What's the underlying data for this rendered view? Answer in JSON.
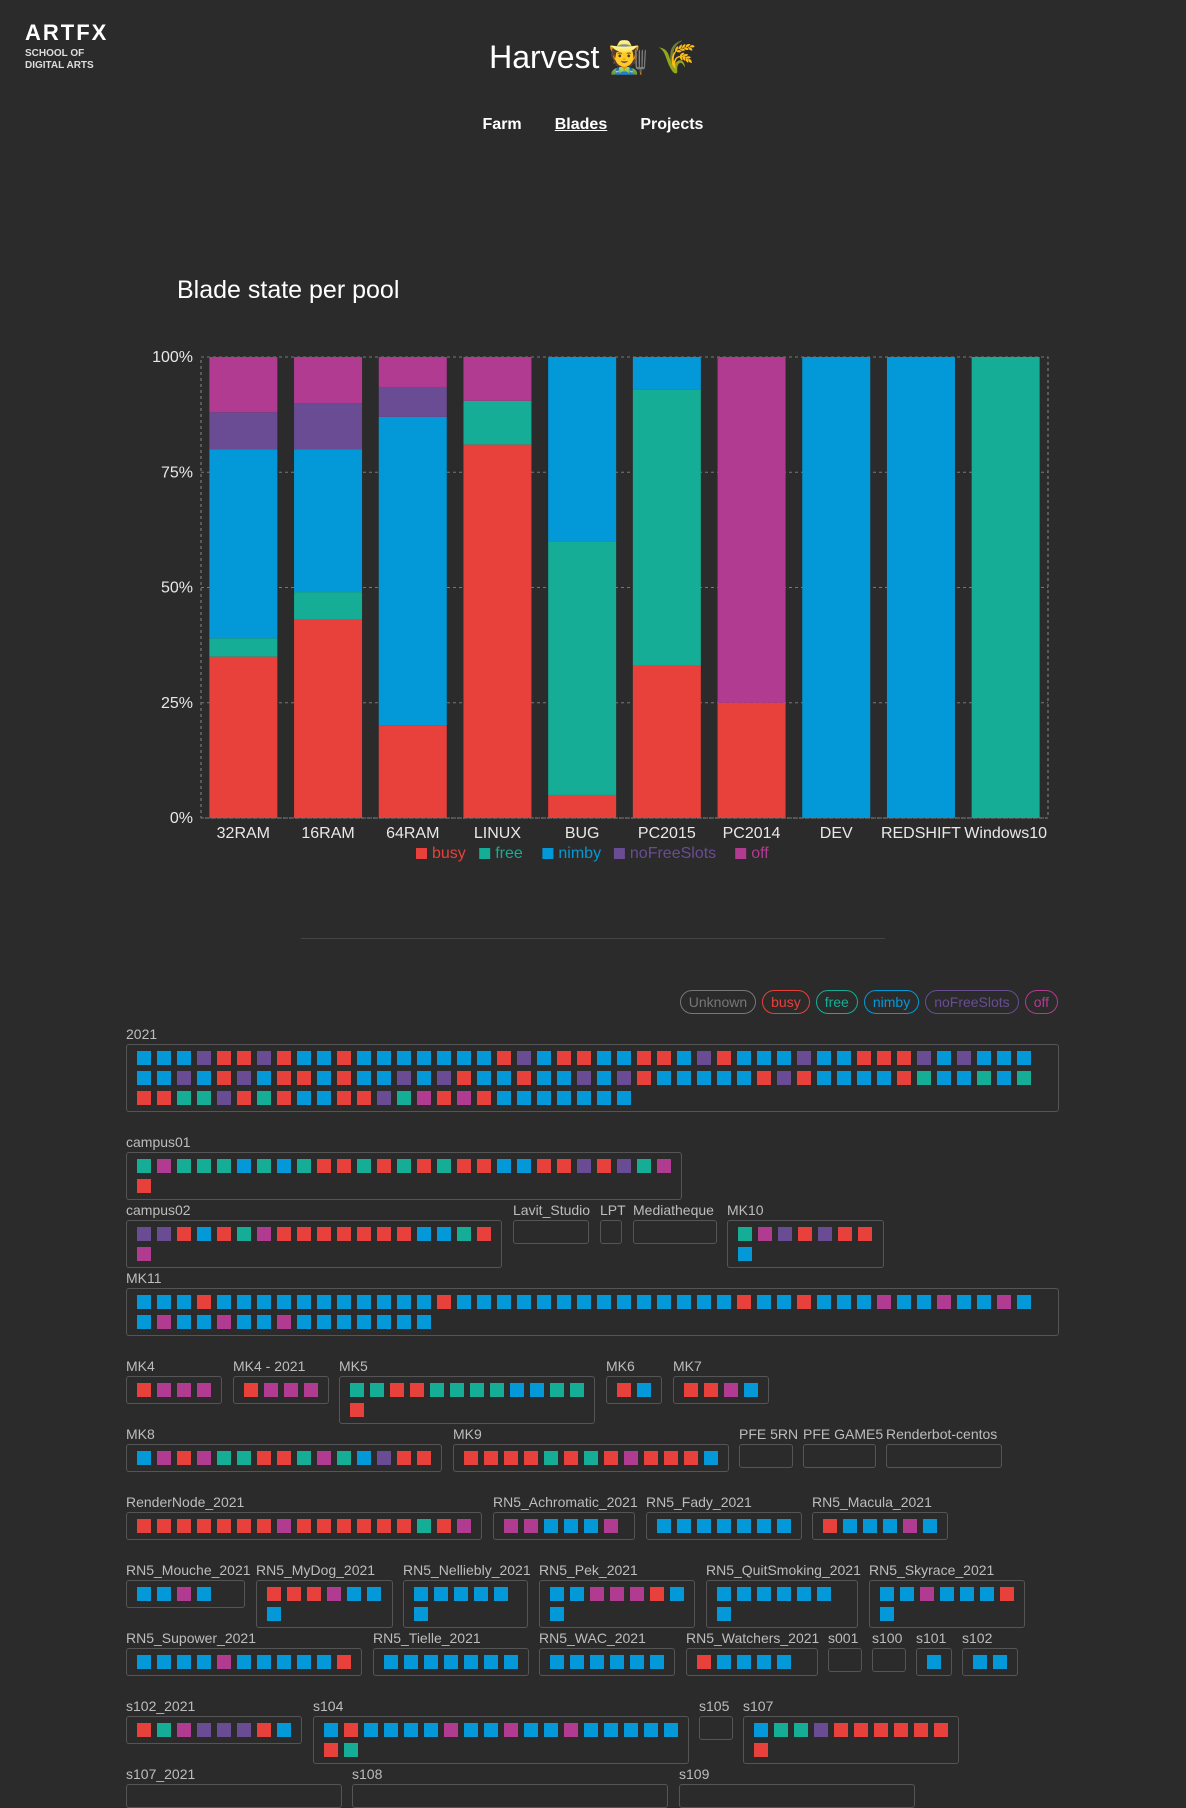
{
  "header": {
    "logo_main": "ARTFX",
    "logo_sub": "SCHOOL OF DIGITAL ARTS",
    "title": "Harvest 🧑‍🌾 🌾",
    "nav": [
      {
        "label": "Farm",
        "active": false
      },
      {
        "label": "Blades",
        "active": true
      },
      {
        "label": "Projects",
        "active": false
      }
    ]
  },
  "colors": {
    "busy": "#e8403a",
    "free": "#15ad95",
    "nimby": "#0399d8",
    "noFreeSlots": "#6a4c94",
    "off": "#b13b91",
    "unknown": "#777777"
  },
  "chart_data": {
    "type": "bar",
    "stacked": true,
    "title": "Blade state per pool",
    "categories": [
      "32RAM",
      "16RAM",
      "64RAM",
      "LINUX",
      "BUG",
      "PC2015",
      "PC2014",
      "DEV",
      "REDSHIFT",
      "Windows10"
    ],
    "series": [
      {
        "name": "busy",
        "values": [
          35,
          43,
          20,
          81,
          5,
          33,
          25,
          0,
          0,
          0
        ]
      },
      {
        "name": "free",
        "values": [
          4,
          6,
          0,
          9.5,
          55,
          60,
          0,
          0,
          0,
          100
        ]
      },
      {
        "name": "nimby",
        "values": [
          41,
          31,
          67,
          0,
          40,
          7,
          0,
          100,
          100,
          0
        ]
      },
      {
        "name": "noFreeSlots",
        "values": [
          8,
          10,
          6.5,
          0,
          0,
          0,
          0,
          0,
          0,
          0
        ]
      },
      {
        "name": "off",
        "values": [
          12,
          10,
          6.5,
          9.5,
          0,
          0,
          75,
          0,
          0,
          0
        ]
      }
    ],
    "yticks": [
      "0%",
      "25%",
      "50%",
      "75%",
      "100%"
    ],
    "ylim": [
      0,
      100
    ],
    "legend_position": "bottom"
  },
  "filters": [
    {
      "label": "Unknown",
      "state": "unknown"
    },
    {
      "label": "busy",
      "state": "busy"
    },
    {
      "label": "free",
      "state": "free"
    },
    {
      "label": "nimby",
      "state": "nimby"
    },
    {
      "label": "noFreeSlots",
      "state": "noFreeSlots"
    },
    {
      "label": "off",
      "state": "off"
    }
  ],
  "pools": [
    {
      "name": "2021",
      "blades": "nnnxbbxbnnbnnnnnnnbxnbbnnbbnxbnnnxnnbbbxnxnnnnnxnbxnbbnbnnxnxbnnbnnxnxbnnnnnbxbnnnnbfnnfnfbbffxbfbnnbbxfobobnnnnnnn"
    },
    {
      "name": "campus01",
      "blades": "fofffnfnfbbfbfbfbbnnbbxbxfob"
    },
    {
      "name": "campus02",
      "blades": "xxbnbfobbbbbbbnnfbo"
    },
    {
      "name": "Lavit_Studio",
      "blades": ""
    },
    {
      "name": "LPT",
      "blades": ""
    },
    {
      "name": "Mediatheque",
      "blades": ""
    },
    {
      "name": "MK10",
      "blades": "foxbxbbn"
    },
    {
      "name": "MK11",
      "blades": "nnnbnnnnnnnnnnnbnnnnnnnnnnnnnnbnnbnnnonnonnonnonnonnonnnnnnn"
    },
    {
      "name": "MK4",
      "blades": "booo"
    },
    {
      "name": "MK4 - 2021",
      "blades": "booo"
    },
    {
      "name": "MK5",
      "blades": "ffbbffffnnffb"
    },
    {
      "name": "MK6",
      "blades": "bn"
    },
    {
      "name": "MK7",
      "blades": "bbon"
    },
    {
      "name": "MK8",
      "blades": "noboffbbfofnxbb"
    },
    {
      "name": "MK9",
      "blades": "bbbbfbfbobbbn"
    },
    {
      "name": "PFE 5RN",
      "blades": ""
    },
    {
      "name": "PFE GAME5",
      "blades": ""
    },
    {
      "name": "Renderbot-centos",
      "blades": ""
    },
    {
      "name": "RenderNode_2021",
      "blades": "bbbbbbbobbbbbbfbo"
    },
    {
      "name": "RN5_Achromatic_2021",
      "blades": "oonnno"
    },
    {
      "name": "RN5_Fady_2021",
      "blades": "nnnnnnn"
    },
    {
      "name": "RN5_Macula_2021",
      "blades": "bnnnon"
    },
    {
      "name": "RN5_Mouche_2021",
      "blades": "nnon"
    },
    {
      "name": "RN5_MyDog_2021",
      "blades": "bbbonnn"
    },
    {
      "name": "RN5_Nelliebly_2021",
      "blades": "nnnnnn"
    },
    {
      "name": "RN5_Pek_2021",
      "blades": "nnooobnn"
    },
    {
      "name": "RN5_QuitSmoking_2021",
      "blades": "nnnnnnn"
    },
    {
      "name": "RN5_Skyrace_2021",
      "blades": "nnonnnbn"
    },
    {
      "name": "RN5_Supower_2021",
      "blades": "nnnnonnnnnb"
    },
    {
      "name": "RN5_Tielle_2021",
      "blades": "nnnnnnn"
    },
    {
      "name": "RN5_WAC_2021",
      "blades": "nnnnnn"
    },
    {
      "name": "RN5_Watchers_2021",
      "blades": "bnnnn"
    },
    {
      "name": "s001",
      "blades": ""
    },
    {
      "name": "s100",
      "blades": ""
    },
    {
      "name": "s101",
      "blades": "n"
    },
    {
      "name": "s102",
      "blades": "nn"
    },
    {
      "name": "s102_2021",
      "blades": "bfoxxxbn"
    },
    {
      "name": "s104",
      "blades": "nbnnnnonnonnonnnnnbf"
    },
    {
      "name": "s105",
      "blades": ""
    },
    {
      "name": "s107",
      "blades": "nffxbbbbbbb"
    },
    {
      "name": "s107_2021",
      "blades": ""
    },
    {
      "name": "s108",
      "blades": ""
    },
    {
      "name": "s109",
      "blades": ""
    }
  ]
}
